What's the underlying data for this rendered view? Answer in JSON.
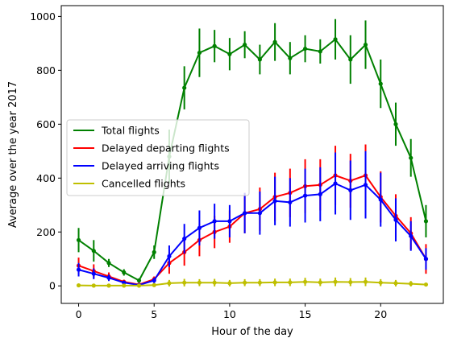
{
  "chart_data": {
    "type": "line",
    "title": "",
    "xlabel": "Hour of the day",
    "ylabel": "Average over the year 2017",
    "xlim": [
      -1.15,
      24.15
    ],
    "ylim": [
      -65,
      1040
    ],
    "x_ticks": [
      0,
      5,
      10,
      15,
      20
    ],
    "y_ticks": [
      0,
      200,
      400,
      600,
      800,
      1000
    ],
    "x_tick_labels": [
      "0",
      "5",
      "10",
      "15",
      "20"
    ],
    "y_tick_labels": [
      "0",
      "200",
      "400",
      "600",
      "800",
      "1000"
    ],
    "grid": false,
    "legend_position": "center-left",
    "x": [
      0,
      1,
      2,
      3,
      4,
      5,
      6,
      7,
      8,
      9,
      10,
      11,
      12,
      13,
      14,
      15,
      16,
      17,
      18,
      19,
      20,
      21,
      22,
      23
    ],
    "series": [
      {
        "name": "Total flights",
        "color": "#008000",
        "values": [
          170,
          130,
          85,
          50,
          20,
          125,
          480,
          735,
          865,
          890,
          860,
          895,
          840,
          905,
          845,
          880,
          870,
          915,
          840,
          895,
          750,
          600,
          475,
          240
        ],
        "errors": [
          45,
          40,
          15,
          12,
          8,
          25,
          100,
          80,
          90,
          60,
          60,
          50,
          55,
          70,
          60,
          50,
          45,
          75,
          90,
          90,
          90,
          80,
          70,
          60
        ]
      },
      {
        "name": "Delayed departing flights",
        "color": "#ff0000",
        "values": [
          75,
          55,
          35,
          15,
          5,
          25,
          85,
          125,
          170,
          200,
          220,
          270,
          285,
          330,
          345,
          370,
          375,
          410,
          390,
          410,
          330,
          260,
          195,
          100
        ],
        "errors": [
          30,
          25,
          15,
          8,
          3,
          10,
          40,
          50,
          60,
          60,
          60,
          75,
          80,
          90,
          90,
          100,
          95,
          110,
          100,
          115,
          95,
          80,
          60,
          55
        ]
      },
      {
        "name": "Delayed arriving flights",
        "color": "#0000ff",
        "values": [
          60,
          45,
          30,
          12,
          3,
          20,
          110,
          175,
          215,
          240,
          240,
          270,
          270,
          315,
          310,
          335,
          340,
          380,
          355,
          375,
          320,
          245,
          185,
          100
        ],
        "errors": [
          25,
          20,
          12,
          6,
          2,
          10,
          40,
          55,
          65,
          65,
          60,
          75,
          80,
          90,
          90,
          100,
          100,
          115,
          110,
          125,
          100,
          80,
          55,
          40
        ]
      },
      {
        "name": "Cancelled flights",
        "color": "#bfbf00",
        "values": [
          2,
          1,
          1,
          1,
          1,
          3,
          10,
          12,
          12,
          12,
          10,
          12,
          12,
          13,
          13,
          15,
          13,
          15,
          14,
          15,
          12,
          10,
          8,
          5
        ],
        "errors": [
          3,
          3,
          2,
          2,
          2,
          4,
          12,
          14,
          13,
          14,
          12,
          13,
          13,
          14,
          14,
          15,
          14,
          16,
          15,
          16,
          13,
          12,
          10,
          6
        ]
      }
    ]
  }
}
